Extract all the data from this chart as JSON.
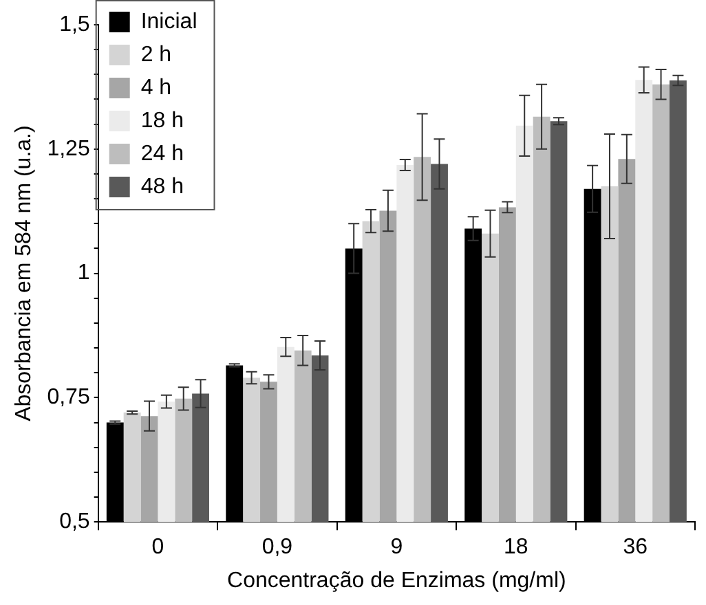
{
  "chart_data": {
    "type": "bar",
    "xlabel": "Concentração de Enzimas (mg/ml)",
    "ylabel": "Absorbancia em 584 nm (u.a.)",
    "categories": [
      "0",
      "0,9",
      "9",
      "18",
      "36"
    ],
    "series": [
      {
        "name": "Inicial",
        "color": "#000000",
        "values": [
          0.7,
          0.815,
          1.05,
          1.09,
          1.17
        ],
        "errors": [
          0.003,
          0.003,
          0.05,
          0.024,
          0.047
        ]
      },
      {
        "name": "2 h",
        "color": "#d4d4d4",
        "values": [
          0.72,
          0.79,
          1.105,
          1.08,
          1.175
        ],
        "errors": [
          0.003,
          0.012,
          0.023,
          0.047,
          0.105
        ]
      },
      {
        "name": "4 h",
        "color": "#a6a6a6",
        "values": [
          0.713,
          0.782,
          1.126,
          1.133,
          1.23
        ],
        "errors": [
          0.03,
          0.014,
          0.041,
          0.011,
          0.049
        ]
      },
      {
        "name": "18 h",
        "color": "#ebebeb",
        "values": [
          0.742,
          0.852,
          1.218,
          1.297,
          1.389
        ],
        "errors": [
          0.013,
          0.019,
          0.011,
          0.061,
          0.026
        ]
      },
      {
        "name": "24 h",
        "color": "#bdbdbd",
        "values": [
          0.748,
          0.845,
          1.234,
          1.315,
          1.38
        ],
        "errors": [
          0.023,
          0.03,
          0.087,
          0.065,
          0.03
        ]
      },
      {
        "name": "48 h",
        "color": "#595959",
        "values": [
          0.758,
          0.835,
          1.22,
          1.306,
          1.388
        ],
        "errors": [
          0.028,
          0.029,
          0.05,
          0.007,
          0.01
        ]
      }
    ],
    "ylim": [
      0.5,
      1.5
    ],
    "yticks": [
      {
        "value": 0.5,
        "label": "0,5"
      },
      {
        "value": 0.55,
        "label": null
      },
      {
        "value": 0.6,
        "label": null
      },
      {
        "value": 0.65,
        "label": null
      },
      {
        "value": 0.7,
        "label": null
      },
      {
        "value": 0.75,
        "label": "0,75"
      },
      {
        "value": 0.8,
        "label": null
      },
      {
        "value": 0.85,
        "label": null
      },
      {
        "value": 0.9,
        "label": null
      },
      {
        "value": 0.95,
        "label": null
      },
      {
        "value": 1,
        "label": "1"
      },
      {
        "value": 1.05,
        "label": null
      },
      {
        "value": 1.1,
        "label": null
      },
      {
        "value": 1.15,
        "label": null
      },
      {
        "value": 1.2,
        "label": null
      },
      {
        "value": 1.25,
        "label": "1,25"
      },
      {
        "value": 1.3,
        "label": null
      },
      {
        "value": 1.35,
        "label": null
      },
      {
        "value": 1.4,
        "label": null
      },
      {
        "value": 1.45,
        "label": null
      },
      {
        "value": 1.5,
        "label": "1,5"
      }
    ],
    "grid": false,
    "legend": "top left"
  }
}
